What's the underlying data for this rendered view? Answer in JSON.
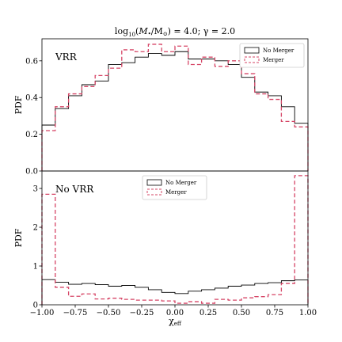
{
  "chart_data": [
    {
      "type": "step-histogram",
      "panel_label": "VRR",
      "ylabel": "PDF",
      "ylim": [
        0,
        0.72
      ],
      "yticks": [
        "0.0",
        "0.2",
        "0.4",
        "0.6"
      ],
      "ytick_values": [
        0.0,
        0.2,
        0.4,
        0.6
      ],
      "legend_position": "top-right",
      "bin_edges": [
        -1.0,
        -0.9,
        -0.8,
        -0.7,
        -0.6,
        -0.5,
        -0.4,
        -0.3,
        -0.2,
        -0.1,
        0.0,
        0.1,
        0.2,
        0.3,
        0.4,
        0.5,
        0.6,
        0.7,
        0.8,
        0.9,
        1.0
      ],
      "series": [
        {
          "name": "No Merger",
          "color": "#000000",
          "line": "solid",
          "values": [
            0.25,
            0.34,
            0.41,
            0.47,
            0.49,
            0.58,
            0.59,
            0.62,
            0.64,
            0.63,
            0.65,
            0.61,
            0.61,
            0.6,
            0.58,
            0.51,
            0.43,
            0.41,
            0.35,
            0.26
          ]
        },
        {
          "name": "Merger",
          "color": "#d64566",
          "line": "dashed",
          "values": [
            0.22,
            0.35,
            0.42,
            0.46,
            0.52,
            0.56,
            0.66,
            0.65,
            0.69,
            0.65,
            0.68,
            0.58,
            0.62,
            0.57,
            0.6,
            0.53,
            0.42,
            0.39,
            0.27,
            0.24
          ]
        }
      ]
    },
    {
      "type": "step-histogram",
      "panel_label": "No VRR",
      "ylabel": "PDF",
      "xlabel_main": "χ",
      "xlabel_sub": "eff",
      "ylim": [
        0,
        3.45
      ],
      "yticks": [
        "0",
        "1",
        "2",
        "3"
      ],
      "ytick_values": [
        0,
        1,
        2,
        3
      ],
      "xticks": [
        "−1.00",
        "−0.75",
        "−0.50",
        "−0.25",
        "0.00",
        "0.25",
        "0.50",
        "0.75",
        "1.00"
      ],
      "xtick_values": [
        -1.0,
        -0.75,
        -0.5,
        -0.25,
        0.0,
        0.25,
        0.5,
        0.75,
        1.0
      ],
      "xlim": [
        -1.0,
        1.0
      ],
      "legend_position": "top-center",
      "bin_edges": [
        -1.0,
        -0.9,
        -0.8,
        -0.7,
        -0.6,
        -0.5,
        -0.4,
        -0.3,
        -0.2,
        -0.1,
        0.0,
        0.1,
        0.2,
        0.3,
        0.4,
        0.5,
        0.6,
        0.7,
        0.8,
        0.9,
        1.0
      ],
      "series": [
        {
          "name": "No Merger",
          "color": "#000000",
          "line": "solid",
          "values": [
            0.65,
            0.58,
            0.53,
            0.55,
            0.52,
            0.48,
            0.5,
            0.45,
            0.39,
            0.32,
            0.29,
            0.35,
            0.39,
            0.43,
            0.48,
            0.51,
            0.55,
            0.57,
            0.62,
            0.64
          ]
        },
        {
          "name": "Merger",
          "color": "#d64566",
          "line": "dashed",
          "values": [
            2.85,
            0.45,
            0.22,
            0.28,
            0.15,
            0.17,
            0.14,
            0.12,
            0.12,
            0.1,
            0.04,
            0.08,
            0.04,
            0.14,
            0.12,
            0.18,
            0.21,
            0.26,
            0.55,
            3.33
          ]
        }
      ]
    }
  ],
  "figure_title": {
    "log_text": "log",
    "log_sub": "10",
    "open": "(",
    "mass_symbol": "M",
    "bullet": "•",
    "slash": "/M",
    "sun": "⊙",
    "rest": ") = 4.0; γ = 2.0"
  }
}
